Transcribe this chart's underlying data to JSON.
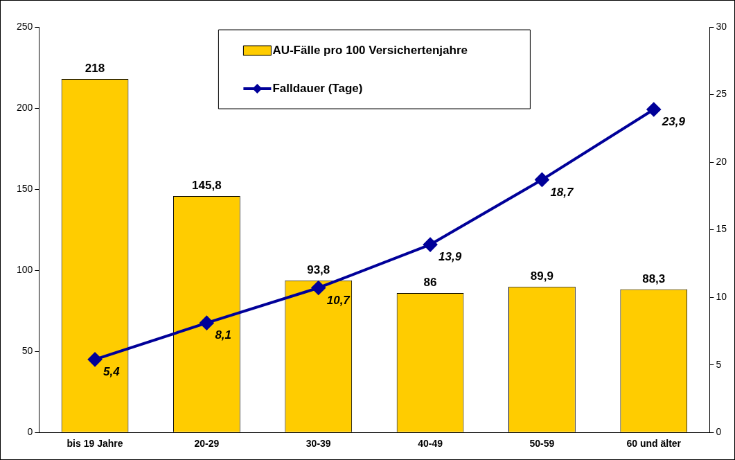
{
  "chart_data": {
    "type": "bar",
    "categories": [
      "bis 19 Jahre",
      "20-29",
      "30-39",
      "40-49",
      "50-59",
      "60 und älter"
    ],
    "series": [
      {
        "name": "AU-Fälle pro 100 Versichertenjahre",
        "color": "#ffcc00",
        "values": [
          218,
          145.8,
          93.8,
          86,
          89.9,
          88.3
        ],
        "value_labels": [
          "218",
          "145,8",
          "93,8",
          "86",
          "89,9",
          "88,3"
        ]
      },
      {
        "name": "Falldauer (Tage)",
        "type": "line",
        "axis": "y2",
        "color": "#000099",
        "values": [
          5.4,
          8.1,
          10.7,
          13.9,
          18.7,
          23.9
        ],
        "value_labels": [
          "5,4",
          "8,1",
          "10,7",
          "13,9",
          "18,7",
          "23,9"
        ]
      }
    ],
    "ylim": [
      0,
      250
    ],
    "yticks": [
      0,
      50,
      100,
      150,
      200,
      250
    ],
    "y2lim": [
      0,
      30
    ],
    "y2ticks": [
      0,
      5,
      10,
      15,
      20,
      25,
      30
    ],
    "grid": false,
    "legend": "top",
    "marker": "diamond",
    "line_style": "solid"
  }
}
